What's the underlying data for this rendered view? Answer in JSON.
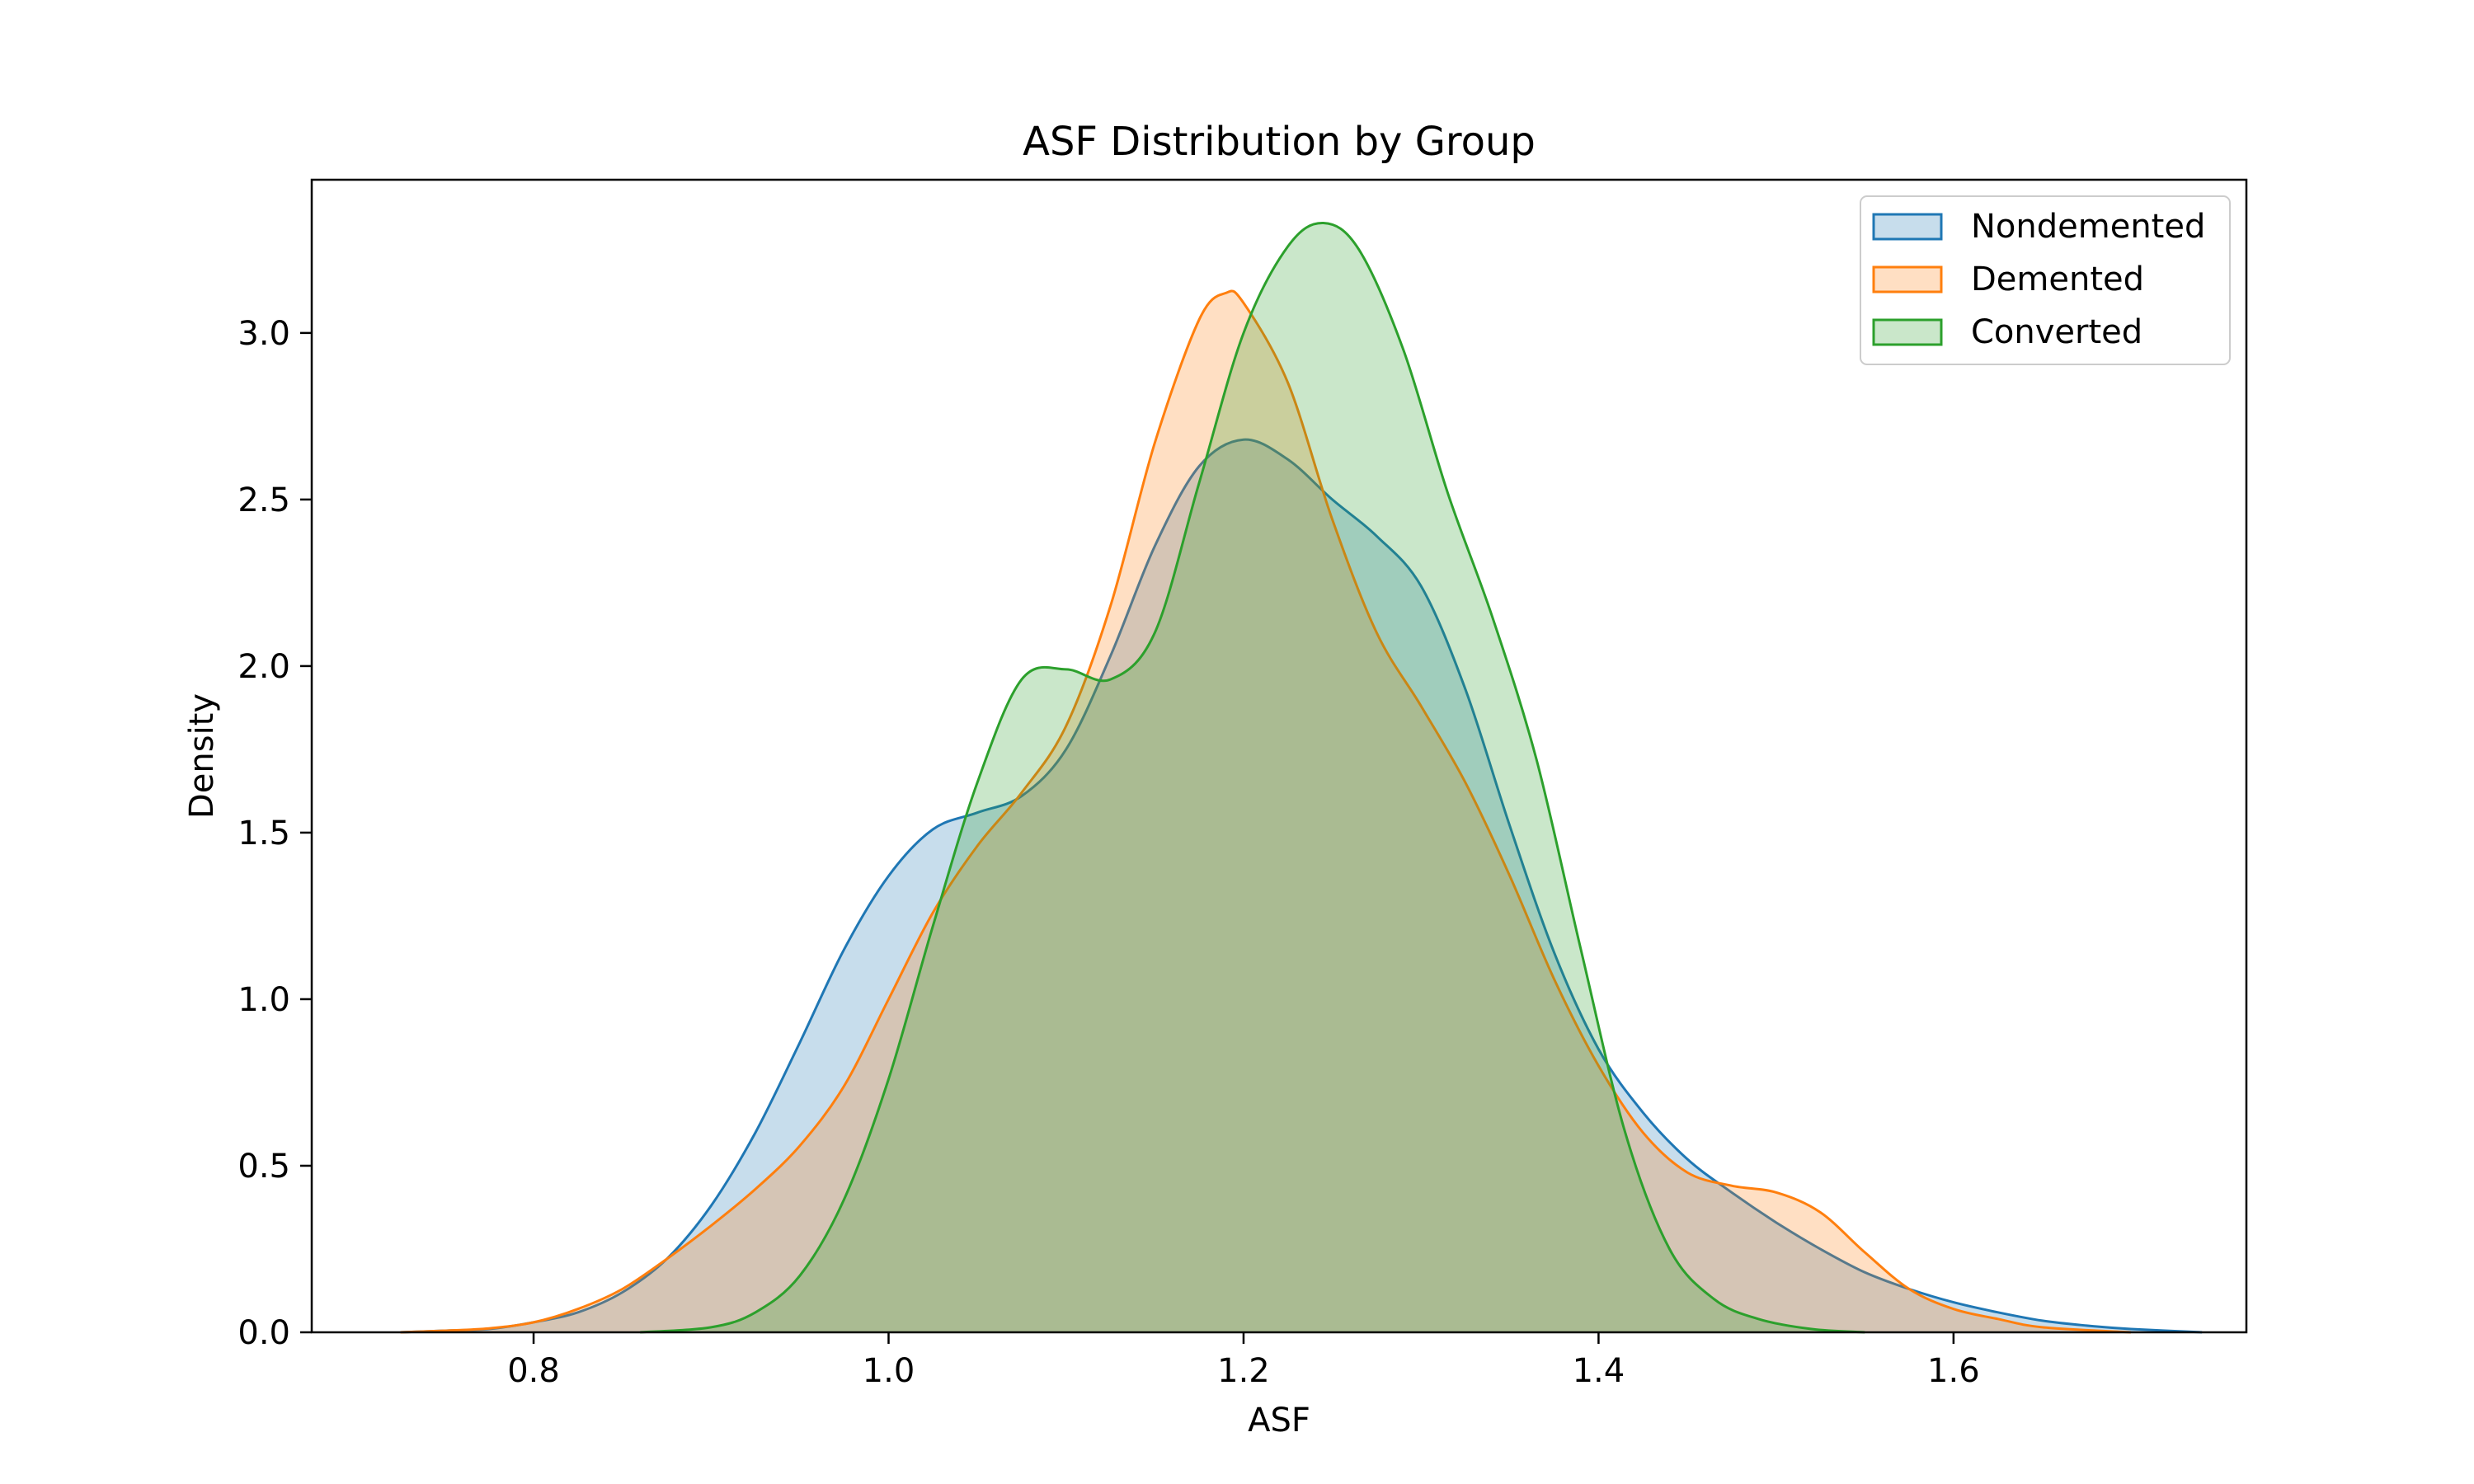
{
  "chart_data": {
    "type": "area",
    "title": "ASF Distribution by Group",
    "xlabel": "ASF",
    "ylabel": "Density",
    "xlim": [
      0.675,
      1.765
    ],
    "ylim": [
      0,
      3.46
    ],
    "xticks": [
      0.8,
      1.0,
      1.2,
      1.4,
      1.6
    ],
    "xtick_labels": [
      "0.8",
      "1.0",
      "1.2",
      "1.4",
      "1.6"
    ],
    "yticks": [
      0.0,
      0.5,
      1.0,
      1.5,
      2.0,
      2.5,
      3.0
    ],
    "ytick_labels": [
      "0.0",
      "0.5",
      "1.0",
      "1.5",
      "2.0",
      "2.5",
      "3.0"
    ],
    "grid": false,
    "legend_position": "top-right",
    "series": [
      {
        "name": "Nondemented",
        "color": "#1f77b4",
        "fill_opacity": 0.25,
        "points": [
          [
            0.725,
            0.0
          ],
          [
            0.75,
            0.005
          ],
          [
            0.775,
            0.01
          ],
          [
            0.8,
            0.03
          ],
          [
            0.825,
            0.06
          ],
          [
            0.85,
            0.12
          ],
          [
            0.875,
            0.22
          ],
          [
            0.9,
            0.38
          ],
          [
            0.925,
            0.6
          ],
          [
            0.95,
            0.87
          ],
          [
            0.975,
            1.15
          ],
          [
            1.0,
            1.37
          ],
          [
            1.025,
            1.51
          ],
          [
            1.05,
            1.56
          ],
          [
            1.075,
            1.61
          ],
          [
            1.1,
            1.75
          ],
          [
            1.125,
            2.03
          ],
          [
            1.15,
            2.36
          ],
          [
            1.175,
            2.6
          ],
          [
            1.2,
            2.68
          ],
          [
            1.225,
            2.62
          ],
          [
            1.25,
            2.5
          ],
          [
            1.275,
            2.39
          ],
          [
            1.3,
            2.24
          ],
          [
            1.325,
            1.93
          ],
          [
            1.35,
            1.52
          ],
          [
            1.375,
            1.14
          ],
          [
            1.4,
            0.85
          ],
          [
            1.425,
            0.66
          ],
          [
            1.45,
            0.52
          ],
          [
            1.475,
            0.42
          ],
          [
            1.5,
            0.33
          ],
          [
            1.525,
            0.25
          ],
          [
            1.55,
            0.18
          ],
          [
            1.575,
            0.13
          ],
          [
            1.6,
            0.09
          ],
          [
            1.625,
            0.06
          ],
          [
            1.65,
            0.035
          ],
          [
            1.675,
            0.02
          ],
          [
            1.7,
            0.01
          ],
          [
            1.74,
            0.0
          ]
        ]
      },
      {
        "name": "Demented",
        "color": "#ff7f0e",
        "fill_opacity": 0.25,
        "points": [
          [
            0.725,
            0.0
          ],
          [
            0.75,
            0.005
          ],
          [
            0.775,
            0.012
          ],
          [
            0.8,
            0.03
          ],
          [
            0.825,
            0.07
          ],
          [
            0.85,
            0.13
          ],
          [
            0.875,
            0.22
          ],
          [
            0.9,
            0.32
          ],
          [
            0.925,
            0.43
          ],
          [
            0.95,
            0.56
          ],
          [
            0.975,
            0.74
          ],
          [
            1.0,
            1.0
          ],
          [
            1.025,
            1.26
          ],
          [
            1.05,
            1.46
          ],
          [
            1.075,
            1.62
          ],
          [
            1.1,
            1.82
          ],
          [
            1.125,
            2.18
          ],
          [
            1.15,
            2.67
          ],
          [
            1.175,
            3.04
          ],
          [
            1.19,
            3.12
          ],
          [
            1.2,
            3.09
          ],
          [
            1.225,
            2.85
          ],
          [
            1.25,
            2.44
          ],
          [
            1.275,
            2.1
          ],
          [
            1.3,
            1.88
          ],
          [
            1.325,
            1.65
          ],
          [
            1.35,
            1.37
          ],
          [
            1.375,
            1.06
          ],
          [
            1.4,
            0.8
          ],
          [
            1.425,
            0.6
          ],
          [
            1.45,
            0.48
          ],
          [
            1.475,
            0.44
          ],
          [
            1.5,
            0.42
          ],
          [
            1.525,
            0.36
          ],
          [
            1.55,
            0.24
          ],
          [
            1.575,
            0.13
          ],
          [
            1.6,
            0.07
          ],
          [
            1.625,
            0.04
          ],
          [
            1.65,
            0.015
          ],
          [
            1.7,
            0.0
          ]
        ]
      },
      {
        "name": "Converted",
        "color": "#2ca02c",
        "fill_opacity": 0.25,
        "points": [
          [
            0.86,
            0.0
          ],
          [
            0.9,
            0.015
          ],
          [
            0.925,
            0.06
          ],
          [
            0.95,
            0.17
          ],
          [
            0.975,
            0.4
          ],
          [
            1.0,
            0.76
          ],
          [
            1.025,
            1.22
          ],
          [
            1.05,
            1.65
          ],
          [
            1.075,
            1.96
          ],
          [
            1.1,
            1.99
          ],
          [
            1.125,
            1.96
          ],
          [
            1.15,
            2.1
          ],
          [
            1.175,
            2.55
          ],
          [
            1.2,
            3.0
          ],
          [
            1.225,
            3.26
          ],
          [
            1.245,
            3.33
          ],
          [
            1.265,
            3.25
          ],
          [
            1.29,
            2.95
          ],
          [
            1.315,
            2.52
          ],
          [
            1.34,
            2.15
          ],
          [
            1.365,
            1.72
          ],
          [
            1.39,
            1.15
          ],
          [
            1.415,
            0.6
          ],
          [
            1.44,
            0.25
          ],
          [
            1.465,
            0.1
          ],
          [
            1.49,
            0.04
          ],
          [
            1.52,
            0.01
          ],
          [
            1.55,
            0.0
          ]
        ]
      }
    ]
  }
}
